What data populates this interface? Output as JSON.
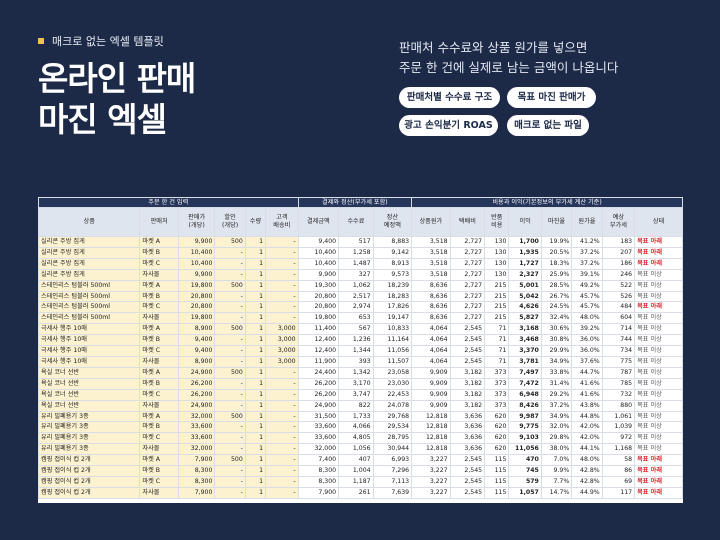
{
  "badge": "매크로 없는 엑셀 템플릿",
  "title": [
    "온라인 판매",
    "마진 엑셀"
  ],
  "subtitle": [
    "판매처 수수료와 상품 원가를 넣으면",
    "주문 한 건에 실제로 남는 금액이 나옵니다"
  ],
  "buttons": [
    "판매처별 수수료 구조",
    "목표 마진 판매가",
    "광고 손익분기 ROAS",
    "매크로 없는 파일"
  ],
  "table": {
    "group_headers": [
      {
        "label": "주문 한 건 입력",
        "span": 6
      },
      {
        "label": "결제와 정산(부가세 포함)",
        "span": 3
      },
      {
        "label": "비용과 이익(기본정보의 부가세 계산 기준)",
        "span": 8
      }
    ],
    "columns": [
      "상품",
      "판매처",
      "판매가\n(개당)",
      "할인\n(개당)",
      "수량",
      "고객\n배송비",
      "결제금액",
      "수수료",
      "정산\n예정액",
      "상품원가",
      "택배비",
      "반품\n비용",
      "이익",
      "마진율",
      "원가율",
      "예상\n부가세",
      "상태"
    ],
    "rows": [
      [
        "실리콘 주방 집게",
        "마켓 A",
        "9,900",
        "500",
        "1",
        "-",
        "9,400",
        "517",
        "8,883",
        "3,518",
        "2,727",
        "130",
        "1,700",
        "19.9%",
        "41.2%",
        "183",
        "목표 아래"
      ],
      [
        "실리콘 주방 집게",
        "마켓 B",
        "10,400",
        "-",
        "1",
        "-",
        "10,400",
        "1,258",
        "9,142",
        "3,518",
        "2,727",
        "130",
        "1,935",
        "20.5%",
        "37.2%",
        "207",
        "목표 아래"
      ],
      [
        "실리콘 주방 집게",
        "마켓 C",
        "10,400",
        "-",
        "1",
        "-",
        "10,400",
        "1,487",
        "8,913",
        "3,518",
        "2,727",
        "130",
        "1,727",
        "18.3%",
        "37.2%",
        "186",
        "목표 아래"
      ],
      [
        "실리콘 주방 집게",
        "자사몰",
        "9,900",
        "-",
        "1",
        "-",
        "9,900",
        "327",
        "9,573",
        "3,518",
        "2,727",
        "130",
        "2,327",
        "25.9%",
        "39.1%",
        "246",
        "목표 이상"
      ],
      [
        "스테인리스 텀블러 500ml",
        "마켓 A",
        "19,800",
        "500",
        "1",
        "-",
        "19,300",
        "1,062",
        "18,239",
        "8,636",
        "2,727",
        "215",
        "5,001",
        "28.5%",
        "49.2%",
        "522",
        "목표 이상"
      ],
      [
        "스테인리스 텀블러 500ml",
        "마켓 B",
        "20,800",
        "-",
        "1",
        "-",
        "20,800",
        "2,517",
        "18,283",
        "8,636",
        "2,727",
        "215",
        "5,042",
        "26.7%",
        "45.7%",
        "526",
        "목표 이상"
      ],
      [
        "스테인리스 텀블러 500ml",
        "마켓 C",
        "20,800",
        "-",
        "1",
        "-",
        "20,800",
        "2,974",
        "17,826",
        "8,636",
        "2,727",
        "215",
        "4,626",
        "24.5%",
        "45.7%",
        "484",
        "목표 아래"
      ],
      [
        "스테인리스 텀블러 500ml",
        "자사몰",
        "19,800",
        "-",
        "1",
        "-",
        "19,800",
        "653",
        "19,147",
        "8,636",
        "2,727",
        "215",
        "5,827",
        "32.4%",
        "48.0%",
        "604",
        "목표 이상"
      ],
      [
        "극세사 행주 10매",
        "마켓 A",
        "8,900",
        "500",
        "1",
        "3,000",
        "11,400",
        "567",
        "10,833",
        "4,064",
        "2,545",
        "71",
        "3,168",
        "30.6%",
        "39.2%",
        "714",
        "목표 이상"
      ],
      [
        "극세사 행주 10매",
        "마켓 B",
        "9,400",
        "-",
        "1",
        "3,000",
        "12,400",
        "1,236",
        "11,164",
        "4,064",
        "2,545",
        "71",
        "3,468",
        "30.8%",
        "36.0%",
        "744",
        "목표 이상"
      ],
      [
        "극세사 행주 10매",
        "마켓 C",
        "9,400",
        "-",
        "1",
        "3,000",
        "12,400",
        "1,344",
        "11,056",
        "4,064",
        "2,545",
        "71",
        "3,370",
        "29.9%",
        "36.0%",
        "734",
        "목표 이상"
      ],
      [
        "극세사 행주 10매",
        "자사몰",
        "8,900",
        "-",
        "1",
        "3,000",
        "11,900",
        "393",
        "11,507",
        "4,064",
        "2,545",
        "71",
        "3,781",
        "34.9%",
        "37.6%",
        "775",
        "목표 이상"
      ],
      [
        "욕실 코너 선반",
        "마켓 A",
        "24,900",
        "500",
        "1",
        "-",
        "24,400",
        "1,342",
        "23,058",
        "9,909",
        "3,182",
        "373",
        "7,497",
        "33.8%",
        "44.7%",
        "787",
        "목표 이상"
      ],
      [
        "욕실 코너 선반",
        "마켓 B",
        "26,200",
        "-",
        "1",
        "-",
        "26,200",
        "3,170",
        "23,030",
        "9,909",
        "3,182",
        "373",
        "7,472",
        "31.4%",
        "41.6%",
        "785",
        "목표 이상"
      ],
      [
        "욕실 코너 선반",
        "마켓 C",
        "26,200",
        "-",
        "1",
        "-",
        "26,200",
        "3,747",
        "22,453",
        "9,909",
        "3,182",
        "373",
        "6,948",
        "29.2%",
        "41.6%",
        "732",
        "목표 이상"
      ],
      [
        "욕실 코너 선반",
        "자사몰",
        "24,900",
        "-",
        "1",
        "-",
        "24,900",
        "822",
        "24,078",
        "9,909",
        "3,182",
        "373",
        "8,426",
        "37.2%",
        "43.8%",
        "880",
        "목표 이상"
      ],
      [
        "유리 밀폐용기 3종",
        "마켓 A",
        "32,000",
        "500",
        "1",
        "-",
        "31,500",
        "1,733",
        "29,768",
        "12,818",
        "3,636",
        "620",
        "9,987",
        "34.9%",
        "44.8%",
        "1,061",
        "목표 이상"
      ],
      [
        "유리 밀폐용기 3종",
        "마켓 B",
        "33,600",
        "-",
        "1",
        "-",
        "33,600",
        "4,066",
        "29,534",
        "12,818",
        "3,636",
        "620",
        "9,775",
        "32.0%",
        "42.0%",
        "1,039",
        "목표 이상"
      ],
      [
        "유리 밀폐용기 3종",
        "마켓 C",
        "33,600",
        "-",
        "1",
        "-",
        "33,600",
        "4,805",
        "28,795",
        "12,818",
        "3,636",
        "620",
        "9,103",
        "29.8%",
        "42.0%",
        "972",
        "목표 이상"
      ],
      [
        "유리 밀폐용기 3종",
        "자사몰",
        "32,000",
        "-",
        "1",
        "-",
        "32,000",
        "1,056",
        "30,944",
        "12,818",
        "3,636",
        "620",
        "11,056",
        "38.0%",
        "44.1%",
        "1,168",
        "목표 이상"
      ],
      [
        "캠핑 접이식 컵 2개",
        "마켓 A",
        "7,900",
        "500",
        "1",
        "-",
        "7,400",
        "407",
        "6,993",
        "3,227",
        "2,545",
        "115",
        "470",
        "7.0%",
        "48.0%",
        "58",
        "목표 아래"
      ],
      [
        "캠핑 접이식 컵 2개",
        "마켓 B",
        "8,300",
        "-",
        "1",
        "-",
        "8,300",
        "1,004",
        "7,296",
        "3,227",
        "2,545",
        "115",
        "745",
        "9.9%",
        "42.8%",
        "86",
        "목표 아래"
      ],
      [
        "캠핑 접이식 컵 2개",
        "마켓 C",
        "8,300",
        "-",
        "1",
        "-",
        "8,300",
        "1,187",
        "7,113",
        "3,227",
        "2,545",
        "115",
        "579",
        "7.7%",
        "42.8%",
        "69",
        "목표 아래"
      ],
      [
        "캠핑 접이식 컵 2개",
        "자사몰",
        "7,900",
        "-",
        "1",
        "-",
        "7,900",
        "261",
        "7,639",
        "3,227",
        "2,545",
        "115",
        "1,057",
        "14.7%",
        "44.9%",
        "117",
        "목표 아래"
      ]
    ]
  }
}
